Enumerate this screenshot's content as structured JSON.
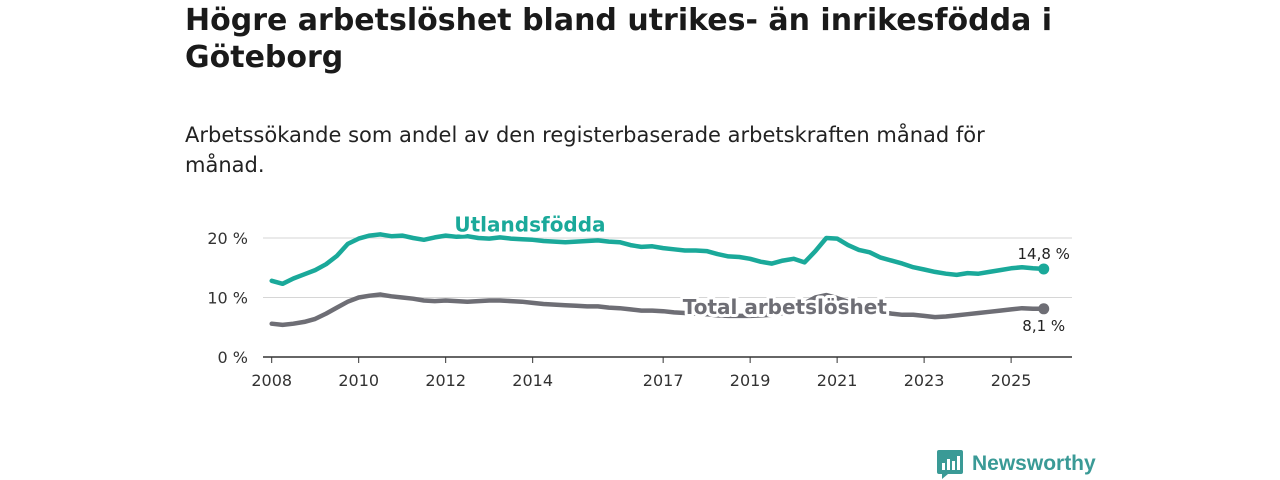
{
  "header": {
    "title": "Högre arbetslöshet bland utrikes- än inrikesfödda i Göteborg",
    "subtitle": "Arbetssökande som andel av den registerbaserade arbetskraften månad för månad."
  },
  "brand": {
    "name": "Newsworthy",
    "color": "#3a9a96"
  },
  "chart_data": {
    "type": "line",
    "title": "Högre arbetslöshet bland utrikes- än inrikesfödda i Göteborg",
    "subtitle": "Arbetssökande som andel av den registerbaserade arbetskraften månad för månad.",
    "xlabel": "",
    "ylabel": "",
    "xlim": [
      2007.8,
      2026.4
    ],
    "ylim": [
      0,
      20
    ],
    "grid": true,
    "x_ticks": [
      2008,
      2010,
      2012,
      2014,
      2017,
      2019,
      2021,
      2023,
      2025
    ],
    "x_tick_labels": [
      "2008",
      "2010",
      "2012",
      "2014",
      "2017",
      "2019",
      "2021",
      "2023",
      "2025"
    ],
    "y_ticks": [
      0,
      10,
      20
    ],
    "y_tick_labels": [
      "0 %",
      "10 %",
      "20 %"
    ],
    "series": [
      {
        "name": "Utlandsfödda",
        "color": "#1aa99a",
        "label_x": 2012.2,
        "label_y": 21.1,
        "end_label": "14,8 %",
        "points": [
          [
            2008.0,
            12.8
          ],
          [
            2008.25,
            12.3
          ],
          [
            2008.5,
            13.2
          ],
          [
            2008.75,
            13.9
          ],
          [
            2009.0,
            14.6
          ],
          [
            2009.25,
            15.6
          ],
          [
            2009.5,
            17.0
          ],
          [
            2009.75,
            19.0
          ],
          [
            2010.0,
            19.9
          ],
          [
            2010.25,
            20.4
          ],
          [
            2010.5,
            20.6
          ],
          [
            2010.75,
            20.3
          ],
          [
            2011.0,
            20.4
          ],
          [
            2011.25,
            20.0
          ],
          [
            2011.5,
            19.7
          ],
          [
            2011.75,
            20.1
          ],
          [
            2012.0,
            20.4
          ],
          [
            2012.25,
            20.2
          ],
          [
            2012.5,
            20.3
          ],
          [
            2012.75,
            20.0
          ],
          [
            2013.0,
            19.9
          ],
          [
            2013.25,
            20.1
          ],
          [
            2013.5,
            19.9
          ],
          [
            2013.75,
            19.8
          ],
          [
            2014.0,
            19.7
          ],
          [
            2014.25,
            19.5
          ],
          [
            2014.5,
            19.4
          ],
          [
            2014.75,
            19.3
          ],
          [
            2015.0,
            19.4
          ],
          [
            2015.25,
            19.5
          ],
          [
            2015.5,
            19.6
          ],
          [
            2015.75,
            19.4
          ],
          [
            2016.0,
            19.3
          ],
          [
            2016.25,
            18.8
          ],
          [
            2016.5,
            18.5
          ],
          [
            2016.75,
            18.6
          ],
          [
            2017.0,
            18.3
          ],
          [
            2017.25,
            18.1
          ],
          [
            2017.5,
            17.9
          ],
          [
            2017.75,
            17.9
          ],
          [
            2018.0,
            17.8
          ],
          [
            2018.25,
            17.3
          ],
          [
            2018.5,
            16.9
          ],
          [
            2018.75,
            16.8
          ],
          [
            2019.0,
            16.5
          ],
          [
            2019.25,
            16.0
          ],
          [
            2019.5,
            15.7
          ],
          [
            2019.75,
            16.2
          ],
          [
            2020.0,
            16.5
          ],
          [
            2020.25,
            15.9
          ],
          [
            2020.5,
            17.8
          ],
          [
            2020.75,
            20.0
          ],
          [
            2021.0,
            19.9
          ],
          [
            2021.25,
            18.8
          ],
          [
            2021.5,
            18.0
          ],
          [
            2021.75,
            17.6
          ],
          [
            2022.0,
            16.7
          ],
          [
            2022.25,
            16.2
          ],
          [
            2022.5,
            15.7
          ],
          [
            2022.75,
            15.1
          ],
          [
            2023.0,
            14.7
          ],
          [
            2023.25,
            14.3
          ],
          [
            2023.5,
            14.0
          ],
          [
            2023.75,
            13.8
          ],
          [
            2024.0,
            14.1
          ],
          [
            2024.25,
            14.0
          ],
          [
            2024.5,
            14.3
          ],
          [
            2024.75,
            14.6
          ],
          [
            2025.0,
            14.9
          ],
          [
            2025.25,
            15.1
          ],
          [
            2025.5,
            14.9
          ],
          [
            2025.75,
            14.8
          ]
        ]
      },
      {
        "name": "Total arbetslöshet",
        "color": "#6e6e75",
        "label_x": 2017.45,
        "label_y": 7.2,
        "end_label": "8,1 %",
        "points": [
          [
            2008.0,
            5.6
          ],
          [
            2008.25,
            5.4
          ],
          [
            2008.5,
            5.6
          ],
          [
            2008.75,
            5.9
          ],
          [
            2009.0,
            6.4
          ],
          [
            2009.25,
            7.3
          ],
          [
            2009.5,
            8.3
          ],
          [
            2009.75,
            9.3
          ],
          [
            2010.0,
            10.0
          ],
          [
            2010.25,
            10.3
          ],
          [
            2010.5,
            10.5
          ],
          [
            2010.75,
            10.2
          ],
          [
            2011.0,
            10.0
          ],
          [
            2011.25,
            9.8
          ],
          [
            2011.5,
            9.5
          ],
          [
            2011.75,
            9.4
          ],
          [
            2012.0,
            9.5
          ],
          [
            2012.25,
            9.4
          ],
          [
            2012.5,
            9.3
          ],
          [
            2012.75,
            9.4
          ],
          [
            2013.0,
            9.5
          ],
          [
            2013.25,
            9.5
          ],
          [
            2013.5,
            9.4
          ],
          [
            2013.75,
            9.3
          ],
          [
            2014.0,
            9.1
          ],
          [
            2014.25,
            8.9
          ],
          [
            2014.5,
            8.8
          ],
          [
            2014.75,
            8.7
          ],
          [
            2015.0,
            8.6
          ],
          [
            2015.25,
            8.5
          ],
          [
            2015.5,
            8.5
          ],
          [
            2015.75,
            8.3
          ],
          [
            2016.0,
            8.2
          ],
          [
            2016.25,
            8.0
          ],
          [
            2016.5,
            7.8
          ],
          [
            2016.75,
            7.8
          ],
          [
            2017.0,
            7.7
          ],
          [
            2017.25,
            7.5
          ],
          [
            2017.5,
            7.4
          ],
          [
            2017.75,
            7.3
          ],
          [
            2018.0,
            7.2
          ],
          [
            2018.25,
            7.0
          ],
          [
            2018.5,
            6.9
          ],
          [
            2018.75,
            6.9
          ],
          [
            2019.0,
            6.9
          ],
          [
            2019.25,
            7.0
          ],
          [
            2019.5,
            7.1
          ],
          [
            2019.75,
            7.4
          ],
          [
            2020.0,
            8.1
          ],
          [
            2020.25,
            9.0
          ],
          [
            2020.5,
            10.0
          ],
          [
            2020.75,
            10.4
          ],
          [
            2021.0,
            9.9
          ],
          [
            2021.25,
            9.3
          ],
          [
            2021.5,
            8.7
          ],
          [
            2021.75,
            8.1
          ],
          [
            2022.0,
            7.6
          ],
          [
            2022.25,
            7.3
          ],
          [
            2022.5,
            7.1
          ],
          [
            2022.75,
            7.1
          ],
          [
            2023.0,
            6.9
          ],
          [
            2023.25,
            6.7
          ],
          [
            2023.5,
            6.8
          ],
          [
            2023.75,
            7.0
          ],
          [
            2024.0,
            7.2
          ],
          [
            2024.25,
            7.4
          ],
          [
            2024.5,
            7.6
          ],
          [
            2024.75,
            7.8
          ],
          [
            2025.0,
            8.0
          ],
          [
            2025.25,
            8.2
          ],
          [
            2025.5,
            8.1
          ],
          [
            2025.75,
            8.1
          ]
        ]
      }
    ]
  }
}
